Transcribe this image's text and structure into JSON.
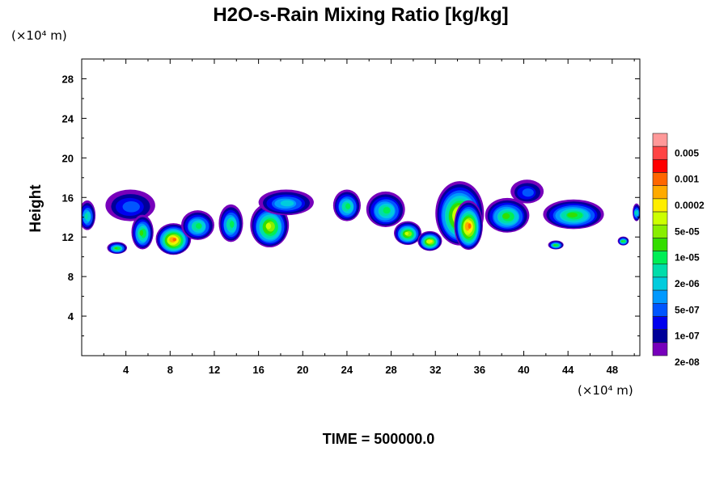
{
  "chart_data": {
    "type": "heatmap",
    "title": "H2O-s-Rain Mixing Ratio [kg/kg]",
    "ylabel": "Height",
    "x_unit_label": "(×10⁴ m)",
    "y_unit_label": "(×10⁴ m)",
    "footer": "TIME = 500000.0",
    "xlim": [
      0,
      50.5
    ],
    "ylim": [
      0,
      30
    ],
    "x_ticks": [
      4,
      8,
      12,
      16,
      20,
      24,
      28,
      32,
      36,
      40,
      44,
      48
    ],
    "y_ticks": [
      4,
      8,
      12,
      16,
      20,
      24,
      28
    ],
    "colorbar": {
      "labels": [
        "0.005",
        "0.001",
        "0.0002",
        "5e-05",
        "1e-05",
        "2e-06",
        "5e-07",
        "1e-07",
        "2e-08"
      ],
      "colors": [
        "#ff9999",
        "#ff4444",
        "#ff0000",
        "#ff6600",
        "#ffaa00",
        "#ffee00",
        "#ccff00",
        "#88ee00",
        "#33dd00",
        "#00ee55",
        "#00ddaa",
        "#00ccdd",
        "#0099ff",
        "#0055ff",
        "#0000ee",
        "#000099",
        "#7700bb"
      ]
    },
    "clouds": [
      {
        "x": 0.5,
        "y": 14.2,
        "w": 1.5,
        "h": 3,
        "level": 7
      },
      {
        "x": 4.4,
        "y": 15.2,
        "w": 4.5,
        "h": 3.2,
        "level": 4
      },
      {
        "x": 3.2,
        "y": 10.9,
        "w": 1.8,
        "h": 1.2,
        "level": 9
      },
      {
        "x": 5.5,
        "y": 12.5,
        "w": 2,
        "h": 3.5,
        "level": 9
      },
      {
        "x": 8.3,
        "y": 11.8,
        "w": 3.2,
        "h": 3.2,
        "level": 14
      },
      {
        "x": 10.5,
        "y": 13.2,
        "w": 3,
        "h": 3,
        "level": 8
      },
      {
        "x": 13.5,
        "y": 13.4,
        "w": 2.2,
        "h": 3.8,
        "level": 8
      },
      {
        "x": 17,
        "y": 13.2,
        "w": 3.5,
        "h": 4.5,
        "level": 11
      },
      {
        "x": 18.5,
        "y": 15.5,
        "w": 5,
        "h": 2.6,
        "level": 6
      },
      {
        "x": 24,
        "y": 15.2,
        "w": 2.5,
        "h": 3.2,
        "level": 8
      },
      {
        "x": 27.5,
        "y": 14.8,
        "w": 3.5,
        "h": 3.6,
        "level": 8
      },
      {
        "x": 29.5,
        "y": 12.4,
        "w": 2.5,
        "h": 2.4,
        "level": 11
      },
      {
        "x": 31.5,
        "y": 11.6,
        "w": 2.2,
        "h": 2,
        "level": 12
      },
      {
        "x": 34.2,
        "y": 14.4,
        "w": 4.4,
        "h": 6.5,
        "level": 13
      },
      {
        "x": 35,
        "y": 13.2,
        "w": 2.6,
        "h": 5,
        "level": 14
      },
      {
        "x": 38.5,
        "y": 14.2,
        "w": 4,
        "h": 3.5,
        "level": 9
      },
      {
        "x": 40.3,
        "y": 16.6,
        "w": 3,
        "h": 2.4,
        "level": 4
      },
      {
        "x": 44.5,
        "y": 14.3,
        "w": 5.5,
        "h": 3,
        "level": 9
      },
      {
        "x": 42.9,
        "y": 11.2,
        "w": 1.4,
        "h": 0.9,
        "level": 9
      },
      {
        "x": 49,
        "y": 11.6,
        "w": 1,
        "h": 0.9,
        "level": 9
      },
      {
        "x": 50.2,
        "y": 14.5,
        "w": 0.7,
        "h": 1.8,
        "level": 7
      }
    ]
  }
}
